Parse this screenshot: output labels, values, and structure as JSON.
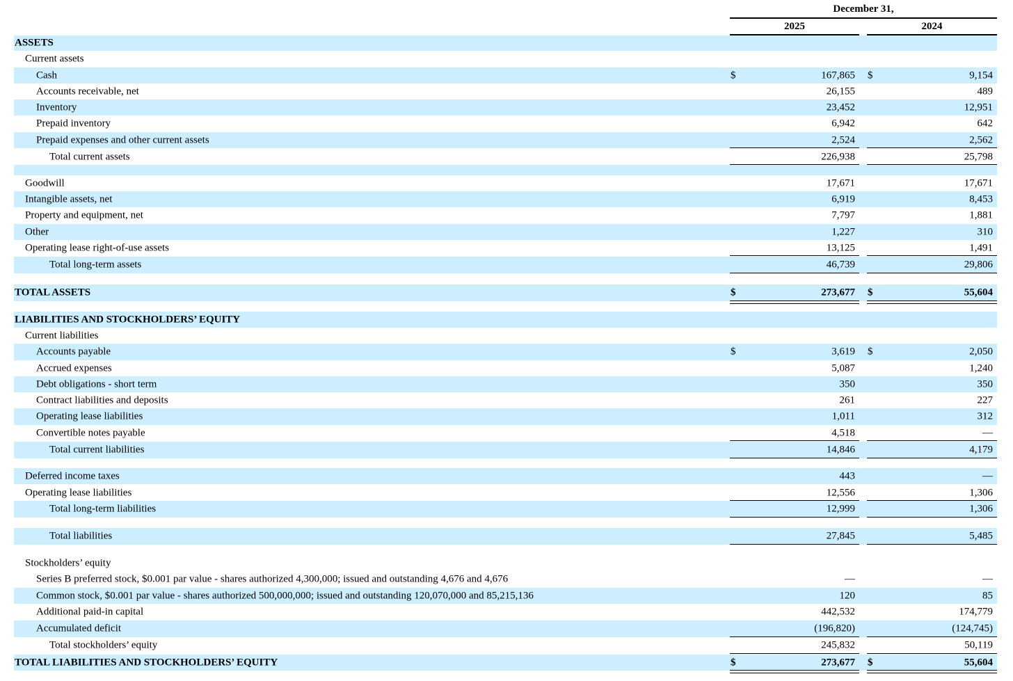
{
  "header": {
    "period": "December 31,",
    "year1": "2025",
    "year2": "2024"
  },
  "rows": [
    {
      "label": "ASSETS",
      "v1": "",
      "v2": "",
      "indent": 0,
      "bold": true
    },
    {
      "label": "Current assets",
      "v1": "",
      "v2": "",
      "indent": 1
    },
    {
      "label": "Cash",
      "v1": "167,865",
      "v2": "9,154",
      "d1": "$",
      "d2": "$",
      "indent": 2
    },
    {
      "label": "Accounts receivable, net",
      "v1": "26,155",
      "v2": "489",
      "indent": 2
    },
    {
      "label": "Inventory",
      "v1": "23,452",
      "v2": "12,951",
      "indent": 2
    },
    {
      "label": "Prepaid inventory",
      "v1": "6,942",
      "v2": "642",
      "indent": 2
    },
    {
      "label": "Prepaid expenses and other current assets",
      "v1": "2,524",
      "v2": "2,562",
      "indent": 2
    },
    {
      "label": "Total current assets",
      "v1": "226,938",
      "v2": "25,798",
      "indent": 3
    },
    {
      "label": "",
      "v1": "",
      "v2": "",
      "indent": 0
    },
    {
      "label": "Goodwill",
      "v1": "17,671",
      "v2": "17,671",
      "indent": 1
    },
    {
      "label": "Intangible assets, net",
      "v1": "6,919",
      "v2": "8,453",
      "indent": 1
    },
    {
      "label": "Property and equipment, net",
      "v1": "7,797",
      "v2": "1,881",
      "indent": 1
    },
    {
      "label": "Other",
      "v1": "1,227",
      "v2": "310",
      "indent": 1
    },
    {
      "label": "Operating lease right-of-use assets",
      "v1": "13,125",
      "v2": "1,491",
      "indent": 1
    },
    {
      "label": "Total long-term assets",
      "v1": "46,739",
      "v2": "29,806",
      "indent": 3
    },
    {
      "label": "TOTAL ASSETS",
      "v1": "273,677",
      "v2": "55,604",
      "d1": "$",
      "d2": "$",
      "indent": 0,
      "bold": true
    },
    {
      "label": "LIABILITIES AND STOCKHOLDERS’ EQUITY",
      "v1": "",
      "v2": "",
      "indent": 0,
      "bold": true
    },
    {
      "label": "Current liabilities",
      "v1": "",
      "v2": "",
      "indent": 1
    },
    {
      "label": "Accounts payable",
      "v1": "3,619",
      "v2": "2,050",
      "d1": "$",
      "d2": "$",
      "indent": 2
    },
    {
      "label": "Accrued expenses",
      "v1": "5,087",
      "v2": "1,240",
      "indent": 2
    },
    {
      "label": "Debt obligations - short term",
      "v1": "350",
      "v2": "350",
      "indent": 2
    },
    {
      "label": "Contract liabilities and deposits",
      "v1": "261",
      "v2": "227",
      "indent": 2
    },
    {
      "label": "Operating lease liabilities",
      "v1": "1,011",
      "v2": "312",
      "indent": 2
    },
    {
      "label": "Convertible notes payable",
      "v1": "4,518",
      "v2": "—",
      "indent": 2
    },
    {
      "label": "Total current liabilities",
      "v1": "14,846",
      "v2": "4,179",
      "indent": 3
    },
    {
      "label": "Deferred income taxes",
      "v1": "443",
      "v2": "—",
      "indent": 1
    },
    {
      "label": "Operating lease liabilities",
      "v1": "12,556",
      "v2": "1,306",
      "indent": 1
    },
    {
      "label": "Total long-term liabilities",
      "v1": "12,999",
      "v2": "1,306",
      "indent": 3
    },
    {
      "label": "Total liabilities",
      "v1": "27,845",
      "v2": "5,485",
      "indent": 3
    },
    {
      "label": "Stockholders’ equity",
      "v1": "",
      "v2": "",
      "indent": 1
    },
    {
      "label": "Series B preferred stock, $0.001 par value - shares authorized 4,300,000; issued and outstanding 4,676 and 4,676",
      "v1": "—",
      "v2": "—",
      "indent": 2
    },
    {
      "label": "Common stock, $0.001 par value - shares authorized 500,000,000; issued and outstanding 120,070,000 and 85,215,136",
      "v1": "120",
      "v2": "85",
      "indent": 2
    },
    {
      "label": "Additional paid-in capital",
      "v1": "442,532",
      "v2": "174,779",
      "indent": 2
    },
    {
      "label": "Accumulated deficit",
      "v1": "(196,820)",
      "v2": "(124,745)",
      "indent": 2
    },
    {
      "label": "Total stockholders’ equity",
      "v1": "245,832",
      "v2": "50,119",
      "indent": 3
    },
    {
      "label": "TOTAL LIABILITIES AND STOCKHOLDERS’ EQUITY",
      "v1": "273,677",
      "v2": "55,604",
      "d1": "$",
      "d2": "$",
      "indent": 0,
      "bold": true
    }
  ]
}
